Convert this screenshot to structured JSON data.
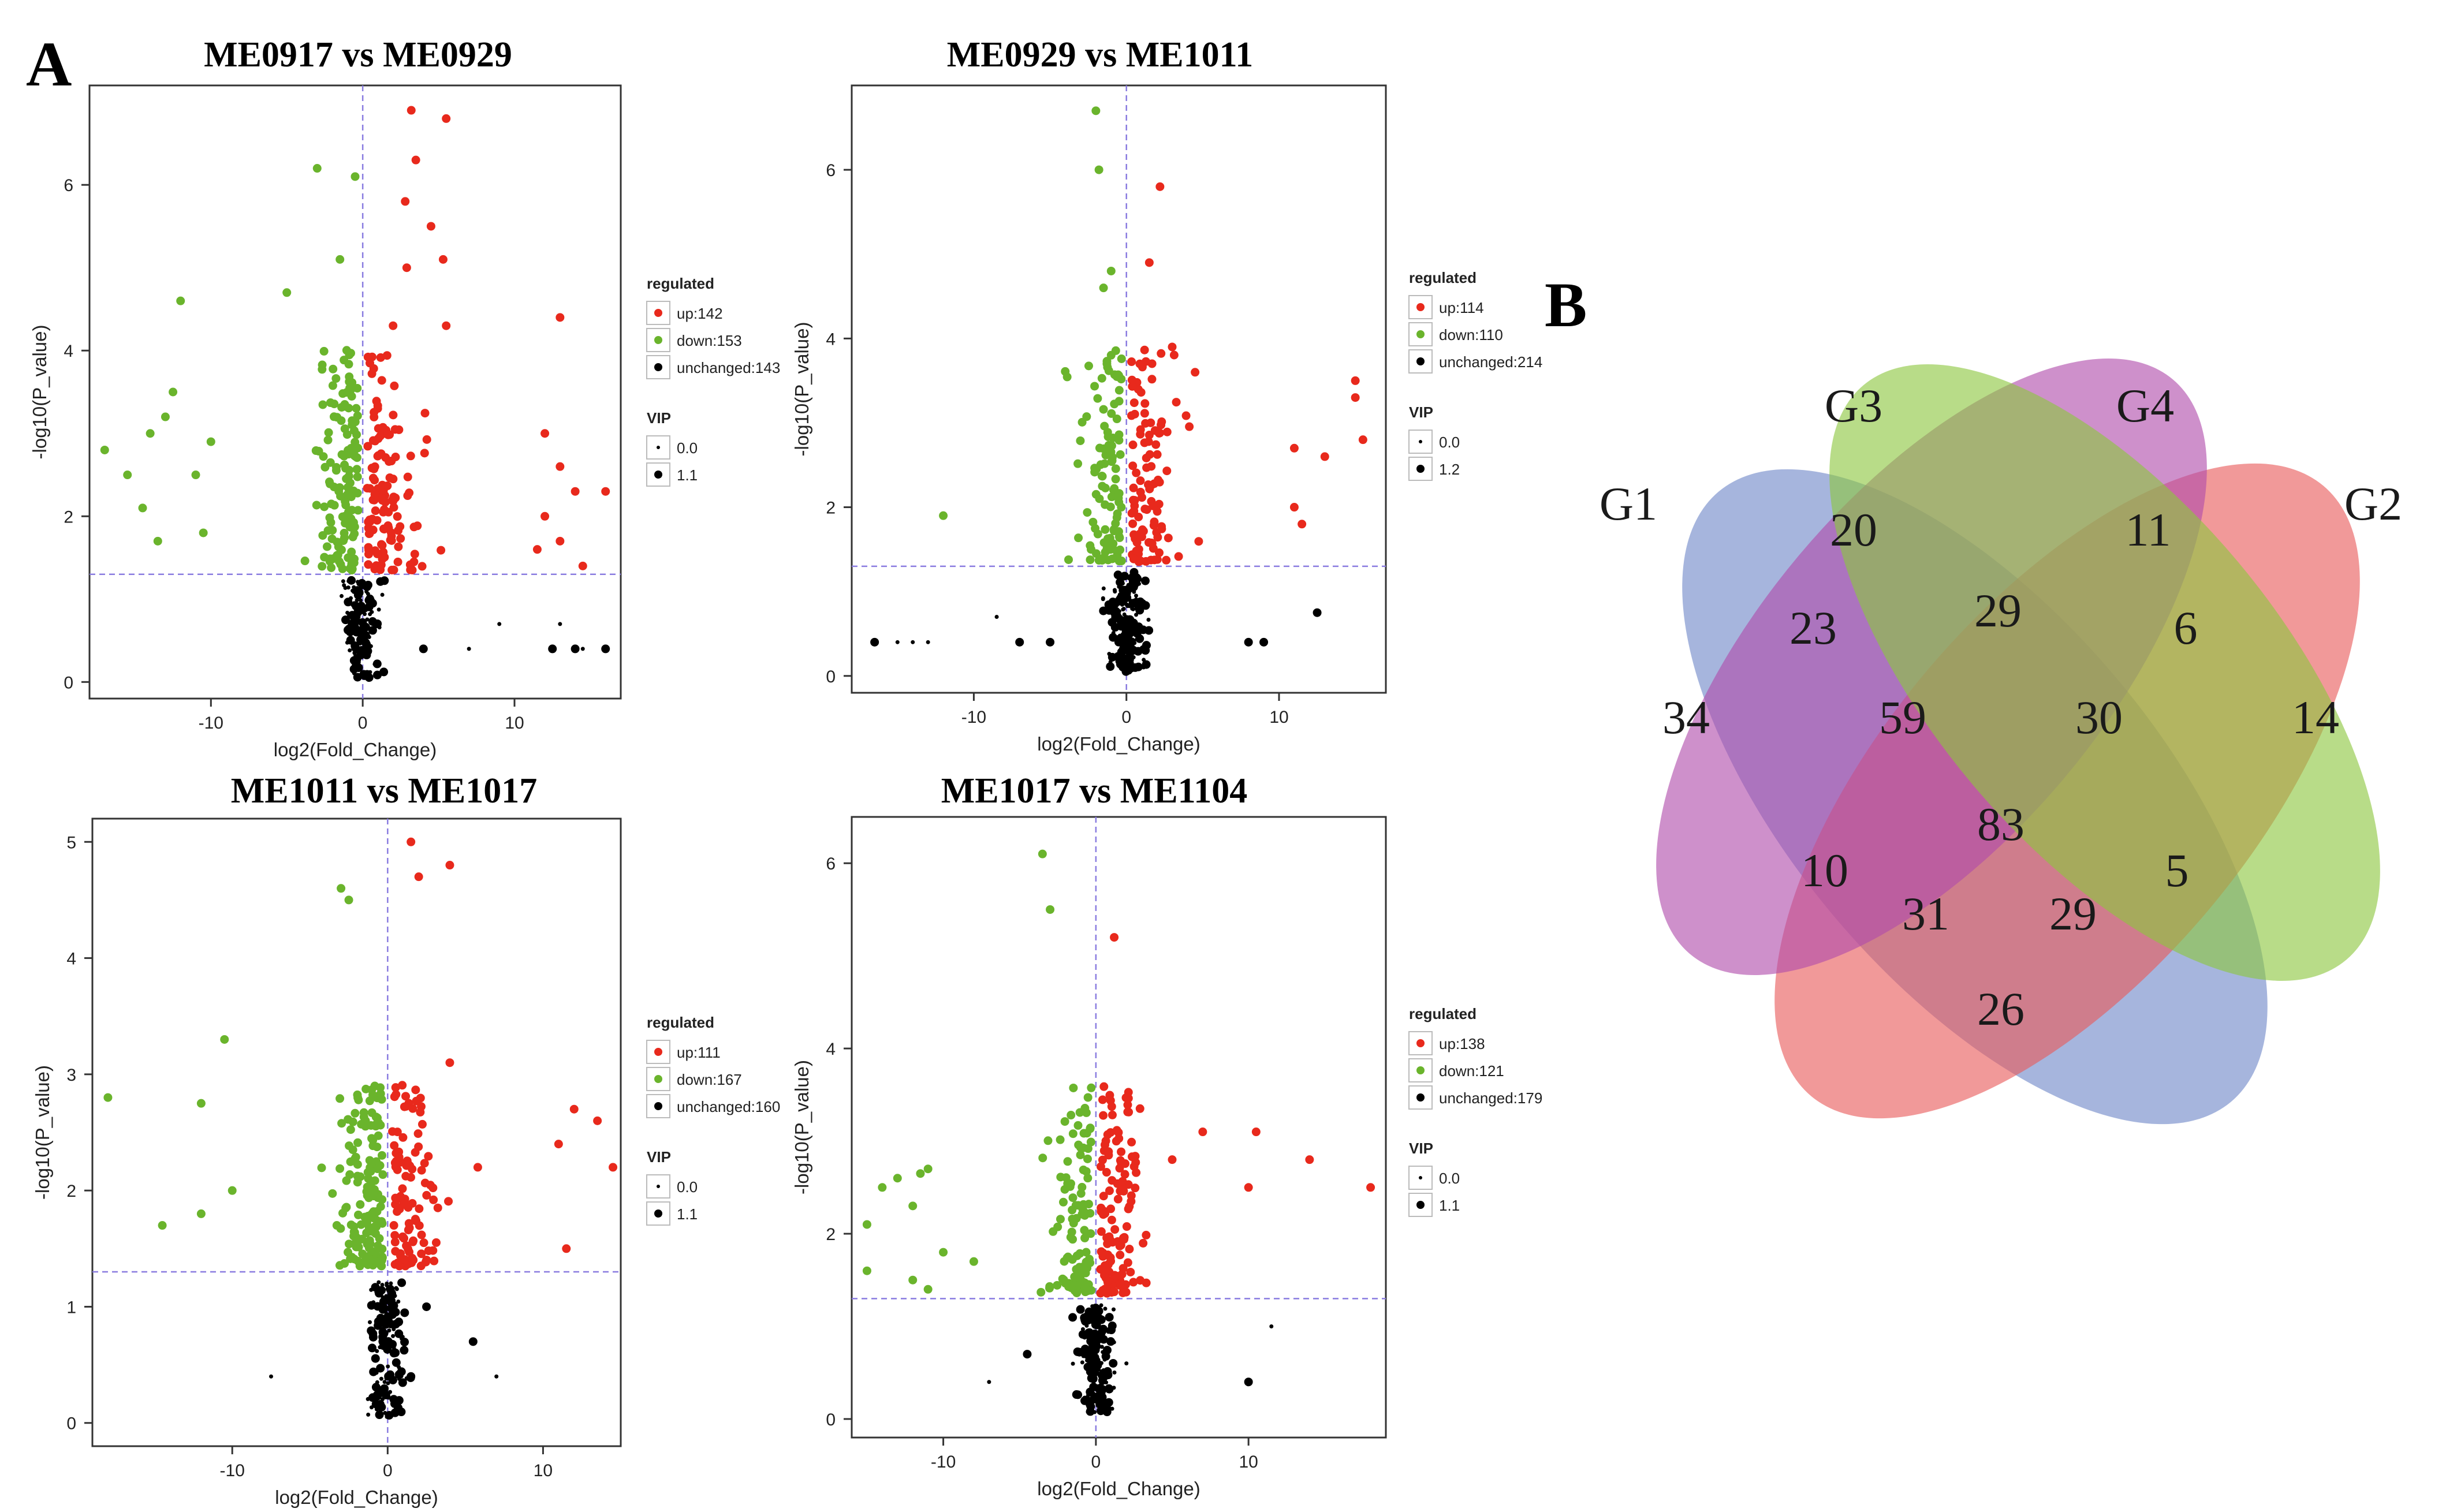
{
  "panels": {
    "a_label": "A",
    "b_label": "B"
  },
  "colors": {
    "up": "#e8291c",
    "down": "#6ab42c",
    "unchanged": "#000000",
    "threshold": "#8a7ce0",
    "venn_g1": "#6f88c8",
    "venn_g2": "#e95a5a",
    "venn_g3": "#8cc63f",
    "venn_g4": "#b04cab"
  },
  "chart_data": [
    {
      "type": "scatter",
      "title": "ME0917 vs ME0929",
      "xlabel": "log2(Fold_Change)",
      "ylabel": "-log10(P_value)",
      "xlim": [
        -18,
        17
      ],
      "ylim": [
        -0.2,
        7.2
      ],
      "xticks": [
        -10,
        0,
        10
      ],
      "yticks": [
        0,
        2,
        4,
        6
      ],
      "threshold_y": 1.3,
      "seed": 11,
      "legend": {
        "title": "regulated",
        "items": [
          {
            "label": "up:142",
            "count": 142
          },
          {
            "label": "down:153",
            "count": 153
          },
          {
            "label": "unchanged:143",
            "count": 143
          }
        ],
        "vip_title": "VIP",
        "vip_items": [
          "0.0",
          "1.1"
        ]
      },
      "highlights": [
        {
          "c": "up",
          "x": [
            [
              3.2,
              6.9
            ],
            [
              5.5,
              6.8
            ],
            [
              3.5,
              6.3
            ],
            [
              2.8,
              5.8
            ],
            [
              4.5,
              5.5
            ],
            [
              5.3,
              5.1
            ],
            [
              2.9,
              5.0
            ],
            [
              13,
              4.4
            ],
            [
              2,
              4.3
            ],
            [
              5.5,
              4.3
            ],
            [
              12,
              3.0
            ],
            [
              13,
              2.6
            ],
            [
              14,
              2.3
            ],
            [
              16,
              2.3
            ],
            [
              12,
              2.0
            ],
            [
              13,
              1.7
            ],
            [
              14.5,
              1.4
            ],
            [
              11.5,
              1.6
            ]
          ]
        },
        {
          "c": "down",
          "x": [
            [
              -3,
              6.2
            ],
            [
              -0.5,
              6.1
            ],
            [
              -12,
              4.6
            ],
            [
              -5,
              4.7
            ],
            [
              -1.5,
              5.1
            ],
            [
              -12.5,
              3.5
            ],
            [
              -13,
              3.2
            ],
            [
              -14,
              3.0
            ],
            [
              -17,
              2.8
            ],
            [
              -10,
              2.9
            ],
            [
              -15.5,
              2.5
            ],
            [
              -11,
              2.5
            ],
            [
              -14.5,
              2.1
            ],
            [
              -10.5,
              1.8
            ],
            [
              -13.5,
              1.7
            ]
          ]
        },
        {
          "c": "unchanged",
          "x": [
            [
              7,
              0.4
            ],
            [
              9,
              0.7
            ],
            [
              13,
              0.7
            ],
            [
              12.5,
              0.4
            ],
            [
              14,
              0.4
            ],
            [
              14.5,
              0.4
            ],
            [
              16,
              0.4
            ],
            [
              4,
              0.4
            ]
          ]
        }
      ]
    },
    {
      "type": "scatter",
      "title": "ME0929 vs ME1011",
      "xlabel": "log2(Fold_Change)",
      "ylabel": "-log10(P_value)",
      "xlim": [
        -18,
        17
      ],
      "ylim": [
        -0.2,
        7.0
      ],
      "xticks": [
        -10,
        0,
        10
      ],
      "yticks": [
        0,
        2,
        4,
        6
      ],
      "threshold_y": 1.3,
      "seed": 23,
      "legend": {
        "title": "regulated",
        "items": [
          {
            "label": "up:114",
            "count": 114
          },
          {
            "label": "down:110",
            "count": 110
          },
          {
            "label": "unchanged:214",
            "count": 214
          }
        ],
        "vip_title": "VIP",
        "vip_items": [
          "0.0",
          "1.2"
        ]
      },
      "highlights": [
        {
          "c": "down",
          "x": [
            [
              -2,
              6.7
            ],
            [
              -1.8,
              6.0
            ],
            [
              -12,
              1.9
            ],
            [
              -1,
              4.8
            ],
            [
              -1.5,
              4.6
            ]
          ]
        },
        {
          "c": "up",
          "x": [
            [
              2.2,
              5.8
            ],
            [
              1.5,
              4.9
            ],
            [
              4.5,
              3.6
            ],
            [
              15,
              3.5
            ],
            [
              15,
              3.3
            ],
            [
              11,
              2.7
            ],
            [
              13,
              2.6
            ],
            [
              15.5,
              2.8
            ],
            [
              11,
              2.0
            ],
            [
              11.5,
              1.8
            ],
            [
              3,
              3.9
            ]
          ]
        },
        {
          "c": "unchanged",
          "x": [
            [
              -16.5,
              0.4
            ],
            [
              -15,
              0.4
            ],
            [
              -14,
              0.4
            ],
            [
              -13,
              0.4
            ],
            [
              -8.5,
              0.7
            ],
            [
              -7,
              0.4
            ],
            [
              -5,
              0.4
            ],
            [
              8,
              0.4
            ],
            [
              9,
              0.4
            ],
            [
              12.5,
              0.75
            ]
          ]
        }
      ]
    },
    {
      "type": "scatter",
      "title": "ME1011 vs ME1017",
      "xlabel": "log2(Fold_Change)",
      "ylabel": "-log10(P_value)",
      "xlim": [
        -19,
        15
      ],
      "ylim": [
        -0.2,
        5.2
      ],
      "xticks": [
        -10,
        0,
        10
      ],
      "yticks": [
        0,
        1,
        2,
        3,
        4,
        5
      ],
      "threshold_y": 1.3,
      "seed": 37,
      "legend": {
        "title": "regulated",
        "items": [
          {
            "label": "up:111",
            "count": 111
          },
          {
            "label": "down:167",
            "count": 167
          },
          {
            "label": "unchanged:160",
            "count": 160
          }
        ],
        "vip_title": "VIP",
        "vip_items": [
          "0.0",
          "1.1"
        ]
      },
      "highlights": [
        {
          "c": "up",
          "x": [
            [
              1.5,
              5.0
            ],
            [
              4,
              4.8
            ],
            [
              2,
              4.7
            ],
            [
              12,
              2.7
            ],
            [
              13.5,
              2.6
            ],
            [
              11,
              2.4
            ],
            [
              14.5,
              2.2
            ],
            [
              5.8,
              2.2
            ],
            [
              11.5,
              1.5
            ],
            [
              4,
              3.1
            ]
          ]
        },
        {
          "c": "down",
          "x": [
            [
              -3,
              4.6
            ],
            [
              -10.5,
              3.3
            ],
            [
              -18,
              2.8
            ],
            [
              -12,
              2.75
            ],
            [
              -10,
              2.0
            ],
            [
              -12,
              1.8
            ],
            [
              -14.5,
              1.7
            ],
            [
              -2.5,
              4.5
            ]
          ]
        },
        {
          "c": "unchanged",
          "x": [
            [
              -7.5,
              0.4
            ],
            [
              5.5,
              0.7
            ],
            [
              7,
              0.4
            ],
            [
              1.5,
              0.4
            ],
            [
              2.5,
              1.0
            ]
          ]
        }
      ]
    },
    {
      "type": "scatter",
      "title": "ME1017 vs ME1104",
      "xlabel": "log2(Fold_Change)",
      "ylabel": "-log10(P_value)",
      "xlim": [
        -16,
        19
      ],
      "ylim": [
        -0.2,
        6.5
      ],
      "xticks": [
        -10,
        0,
        10
      ],
      "yticks": [
        0,
        2,
        4,
        6
      ],
      "threshold_y": 1.3,
      "seed": 53,
      "legend": {
        "title": "regulated",
        "items": [
          {
            "label": "up:138",
            "count": 138
          },
          {
            "label": "down:121",
            "count": 121
          },
          {
            "label": "unchanged:179",
            "count": 179
          }
        ],
        "vip_title": "VIP",
        "vip_items": [
          "0.0",
          "1.1"
        ]
      },
      "highlights": [
        {
          "c": "down",
          "x": [
            [
              -3.5,
              6.1
            ],
            [
              -3,
              5.5
            ],
            [
              -13,
              2.6
            ],
            [
              -11,
              2.7
            ],
            [
              -11.5,
              2.65
            ],
            [
              -14,
              2.5
            ],
            [
              -12,
              2.3
            ],
            [
              -15,
              2.1
            ],
            [
              -10,
              1.8
            ],
            [
              -8,
              1.7
            ],
            [
              -15,
              1.6
            ],
            [
              -12,
              1.5
            ],
            [
              -11,
              1.4
            ]
          ]
        },
        {
          "c": "up",
          "x": [
            [
              1.2,
              5.2
            ],
            [
              7,
              3.1
            ],
            [
              10.5,
              3.1
            ],
            [
              14,
              2.8
            ],
            [
              18,
              2.5
            ],
            [
              10,
              2.5
            ],
            [
              5,
              2.8
            ]
          ]
        },
        {
          "c": "unchanged",
          "x": [
            [
              -7,
              0.4
            ],
            [
              -4.5,
              0.7
            ],
            [
              10,
              0.4
            ],
            [
              11.5,
              1.0
            ],
            [
              2,
              0.6
            ]
          ]
        }
      ]
    },
    {
      "type": "venn",
      "sets": [
        "G1",
        "G3",
        "G4",
        "G2"
      ],
      "regions": [
        {
          "label": "34",
          "value": 34
        },
        {
          "label": "20",
          "value": 20
        },
        {
          "label": "11",
          "value": 11
        },
        {
          "label": "14",
          "value": 14
        },
        {
          "label": "23",
          "value": 23
        },
        {
          "label": "29",
          "value": 29
        },
        {
          "label": "6",
          "value": 6
        },
        {
          "label": "59",
          "value": 59
        },
        {
          "label": "30",
          "value": 30
        },
        {
          "label": "83",
          "value": 83
        },
        {
          "label": "10",
          "value": 10
        },
        {
          "label": "5",
          "value": 5
        },
        {
          "label": "31",
          "value": 31
        },
        {
          "label": "29",
          "value": 29
        },
        {
          "label": "26",
          "value": 26
        }
      ]
    }
  ]
}
